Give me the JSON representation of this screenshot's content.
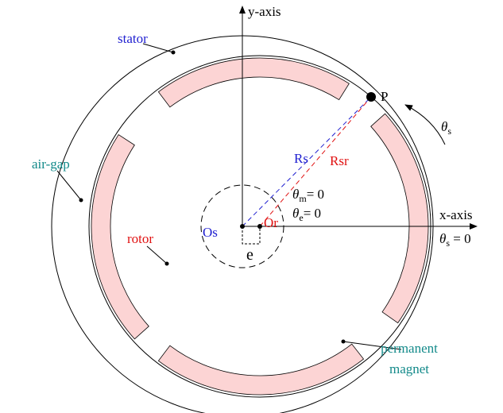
{
  "labels": {
    "y_axis": "y-axis",
    "x_axis": "x-axis",
    "stator": "stator",
    "air_gap": "air-gap",
    "rotor": "rotor",
    "os": "Os",
    "or": "Or",
    "rs": "Rs",
    "rsr": "Rsr",
    "p": "P",
    "e": "e",
    "theta_s": {
      "symbol": "θ",
      "sub": "s"
    },
    "theta_m": {
      "symbol": "θ",
      "sub": "m",
      "rest": "= 0"
    },
    "theta_e": {
      "symbol": "θ",
      "sub": "e",
      "rest": "= 0"
    },
    "theta_s0": {
      "symbol": "θ",
      "sub": "s",
      "rest": " = 0"
    },
    "permanent_magnet": [
      "permanent",
      "magnet"
    ]
  }
}
